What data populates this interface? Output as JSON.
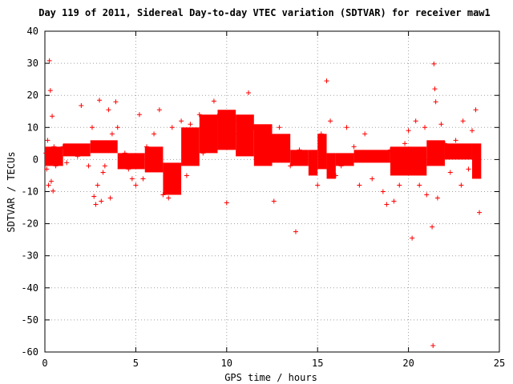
{
  "chart_data": {
    "type": "scatter",
    "title": "Day 119 of 2011, Sidereal Day-to-day VTEC variation (SDTVAR) for receiver maw1",
    "xlabel": "GPS time / hours",
    "ylabel": "SDTVAR / TECUs",
    "xlim": [
      0,
      25
    ],
    "ylim": [
      -60,
      40
    ],
    "xticks": [
      0,
      5,
      10,
      15,
      20,
      25
    ],
    "yticks": [
      -60,
      -50,
      -40,
      -30,
      -20,
      -10,
      0,
      10,
      20,
      30,
      40
    ],
    "grid": true,
    "marker": "+",
    "colors": {
      "points": "#ff0000",
      "grid": "#a0a0a0",
      "axis": "#000000"
    },
    "series": [
      {
        "name": "SDTVAR",
        "points": [
          [
            0.05,
            2
          ],
          [
            0.1,
            -3
          ],
          [
            0.15,
            6
          ],
          [
            0.2,
            -8
          ],
          [
            0.25,
            30.8
          ],
          [
            0.3,
            21.5
          ],
          [
            0.35,
            -6.8
          ],
          [
            0.4,
            13.5
          ],
          [
            0.45,
            -9.8
          ],
          [
            0.5,
            4
          ],
          [
            0.6,
            -2
          ],
          [
            0.8,
            2
          ],
          [
            1.0,
            4
          ],
          [
            1.2,
            -1
          ],
          [
            1.5,
            3
          ],
          [
            1.8,
            1
          ],
          [
            2.0,
            16.8
          ],
          [
            2.2,
            3
          ],
          [
            2.4,
            -2
          ],
          [
            2.6,
            10
          ],
          [
            2.7,
            -11.5
          ],
          [
            2.8,
            -14
          ],
          [
            2.9,
            -8
          ],
          [
            3.0,
            18.5
          ],
          [
            3.1,
            -13
          ],
          [
            3.2,
            -4
          ],
          [
            3.3,
            -2
          ],
          [
            3.5,
            15.5
          ],
          [
            3.6,
            -12
          ],
          [
            3.7,
            8
          ],
          [
            3.9,
            18
          ],
          [
            4.0,
            10
          ],
          [
            4.2,
            -1
          ],
          [
            4.4,
            2
          ],
          [
            4.6,
            -3
          ],
          [
            4.8,
            -6
          ],
          [
            5.0,
            -8
          ],
          [
            5.2,
            14
          ],
          [
            5.4,
            -6
          ],
          [
            5.6,
            4
          ],
          [
            5.8,
            2
          ],
          [
            6.0,
            8
          ],
          [
            6.3,
            15.5
          ],
          [
            6.5,
            -11
          ],
          [
            6.8,
            -12
          ],
          [
            7.0,
            10
          ],
          [
            7.2,
            -8
          ],
          [
            7.5,
            12
          ],
          [
            7.8,
            -5
          ],
          [
            8.0,
            11
          ],
          [
            8.3,
            6
          ],
          [
            8.5,
            14
          ],
          [
            8.7,
            2
          ],
          [
            9.0,
            5
          ],
          [
            9.3,
            18.2
          ],
          [
            9.5,
            13.5
          ],
          [
            9.7,
            10
          ],
          [
            9.9,
            8
          ],
          [
            10.0,
            -13.5
          ],
          [
            10.2,
            14
          ],
          [
            10.4,
            12
          ],
          [
            10.6,
            8
          ],
          [
            10.8,
            3
          ],
          [
            11.0,
            2
          ],
          [
            11.2,
            20.8
          ],
          [
            11.5,
            10
          ],
          [
            11.8,
            5
          ],
          [
            12.0,
            8
          ],
          [
            12.3,
            2
          ],
          [
            12.6,
            -13
          ],
          [
            12.9,
            10
          ],
          [
            13.2,
            5
          ],
          [
            13.5,
            -2
          ],
          [
            13.8,
            -22.5
          ],
          [
            14.0,
            3
          ],
          [
            14.3,
            2
          ],
          [
            14.6,
            1
          ],
          [
            15.0,
            -8
          ],
          [
            15.2,
            8
          ],
          [
            15.5,
            24.5
          ],
          [
            15.7,
            12
          ],
          [
            16.0,
            -5
          ],
          [
            16.3,
            -2
          ],
          [
            16.6,
            10
          ],
          [
            17.0,
            4
          ],
          [
            17.3,
            -8
          ],
          [
            17.6,
            8
          ],
          [
            18.0,
            -6
          ],
          [
            18.3,
            2
          ],
          [
            18.6,
            -10
          ],
          [
            18.8,
            -14
          ],
          [
            19.0,
            3
          ],
          [
            19.2,
            -13
          ],
          [
            19.5,
            -8
          ],
          [
            19.8,
            5
          ],
          [
            20.0,
            9
          ],
          [
            20.2,
            -24.5
          ],
          [
            20.4,
            12
          ],
          [
            20.6,
            -8
          ],
          [
            20.9,
            10
          ],
          [
            21.0,
            -11
          ],
          [
            21.2,
            2
          ],
          [
            21.3,
            -21
          ],
          [
            21.35,
            -58
          ],
          [
            21.4,
            29.8
          ],
          [
            21.45,
            22
          ],
          [
            21.5,
            18
          ],
          [
            21.6,
            -12
          ],
          [
            21.8,
            11
          ],
          [
            22.0,
            5
          ],
          [
            22.3,
            -4
          ],
          [
            22.6,
            6
          ],
          [
            22.9,
            -8
          ],
          [
            23.0,
            12
          ],
          [
            23.3,
            -3
          ],
          [
            23.5,
            9
          ],
          [
            23.7,
            15.5
          ],
          [
            23.9,
            -16.5
          ]
        ],
        "bands": [
          [
            0.0,
            1.0,
            -2.0,
            4.0
          ],
          [
            1.0,
            2.5,
            1.0,
            5.0
          ],
          [
            2.5,
            4.0,
            2.0,
            6.0
          ],
          [
            4.0,
            5.5,
            -3.0,
            2.0
          ],
          [
            5.5,
            6.5,
            -4.0,
            4.0
          ],
          [
            6.5,
            7.5,
            -11.0,
            -1.0
          ],
          [
            7.5,
            8.5,
            -2.0,
            10.0
          ],
          [
            8.5,
            9.5,
            2.0,
            14.0
          ],
          [
            9.5,
            10.5,
            3.0,
            15.5
          ],
          [
            10.5,
            11.5,
            1.0,
            14.0
          ],
          [
            11.5,
            12.5,
            -2.0,
            11.0
          ],
          [
            12.5,
            13.5,
            -1.0,
            8.0
          ],
          [
            13.5,
            14.5,
            -2.0,
            3.0
          ],
          [
            14.5,
            15.0,
            -5.0,
            3.0
          ],
          [
            15.0,
            15.5,
            -3.0,
            8.0
          ],
          [
            15.5,
            16.0,
            -6.0,
            2.0
          ],
          [
            16.0,
            17.0,
            -2.0,
            2.0
          ],
          [
            17.0,
            19.0,
            -1.0,
            3.0
          ],
          [
            19.0,
            21.0,
            -5.0,
            4.0
          ],
          [
            21.0,
            22.0,
            -2.0,
            6.0
          ],
          [
            22.0,
            23.5,
            0.0,
            5.0
          ],
          [
            23.5,
            24.0,
            -6.0,
            5.0
          ]
        ]
      }
    ]
  }
}
